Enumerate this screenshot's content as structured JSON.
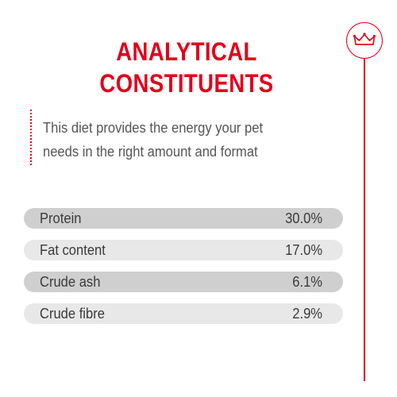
{
  "header": {
    "title_line1": "ANALYTICAL",
    "title_line2": "CONSTITUENTS",
    "logo_icon": "crown-icon",
    "accent_color": "#e2001a"
  },
  "intro": {
    "text": "This diet provides the energy your pet needs in the right amount and format"
  },
  "constituents": [
    {
      "label": "Protein",
      "value": "30.0%"
    },
    {
      "label": "Fat content",
      "value": "17.0%"
    },
    {
      "label": "Crude ash",
      "value": "6.1%"
    },
    {
      "label": "Crude fibre",
      "value": "2.9%"
    }
  ]
}
